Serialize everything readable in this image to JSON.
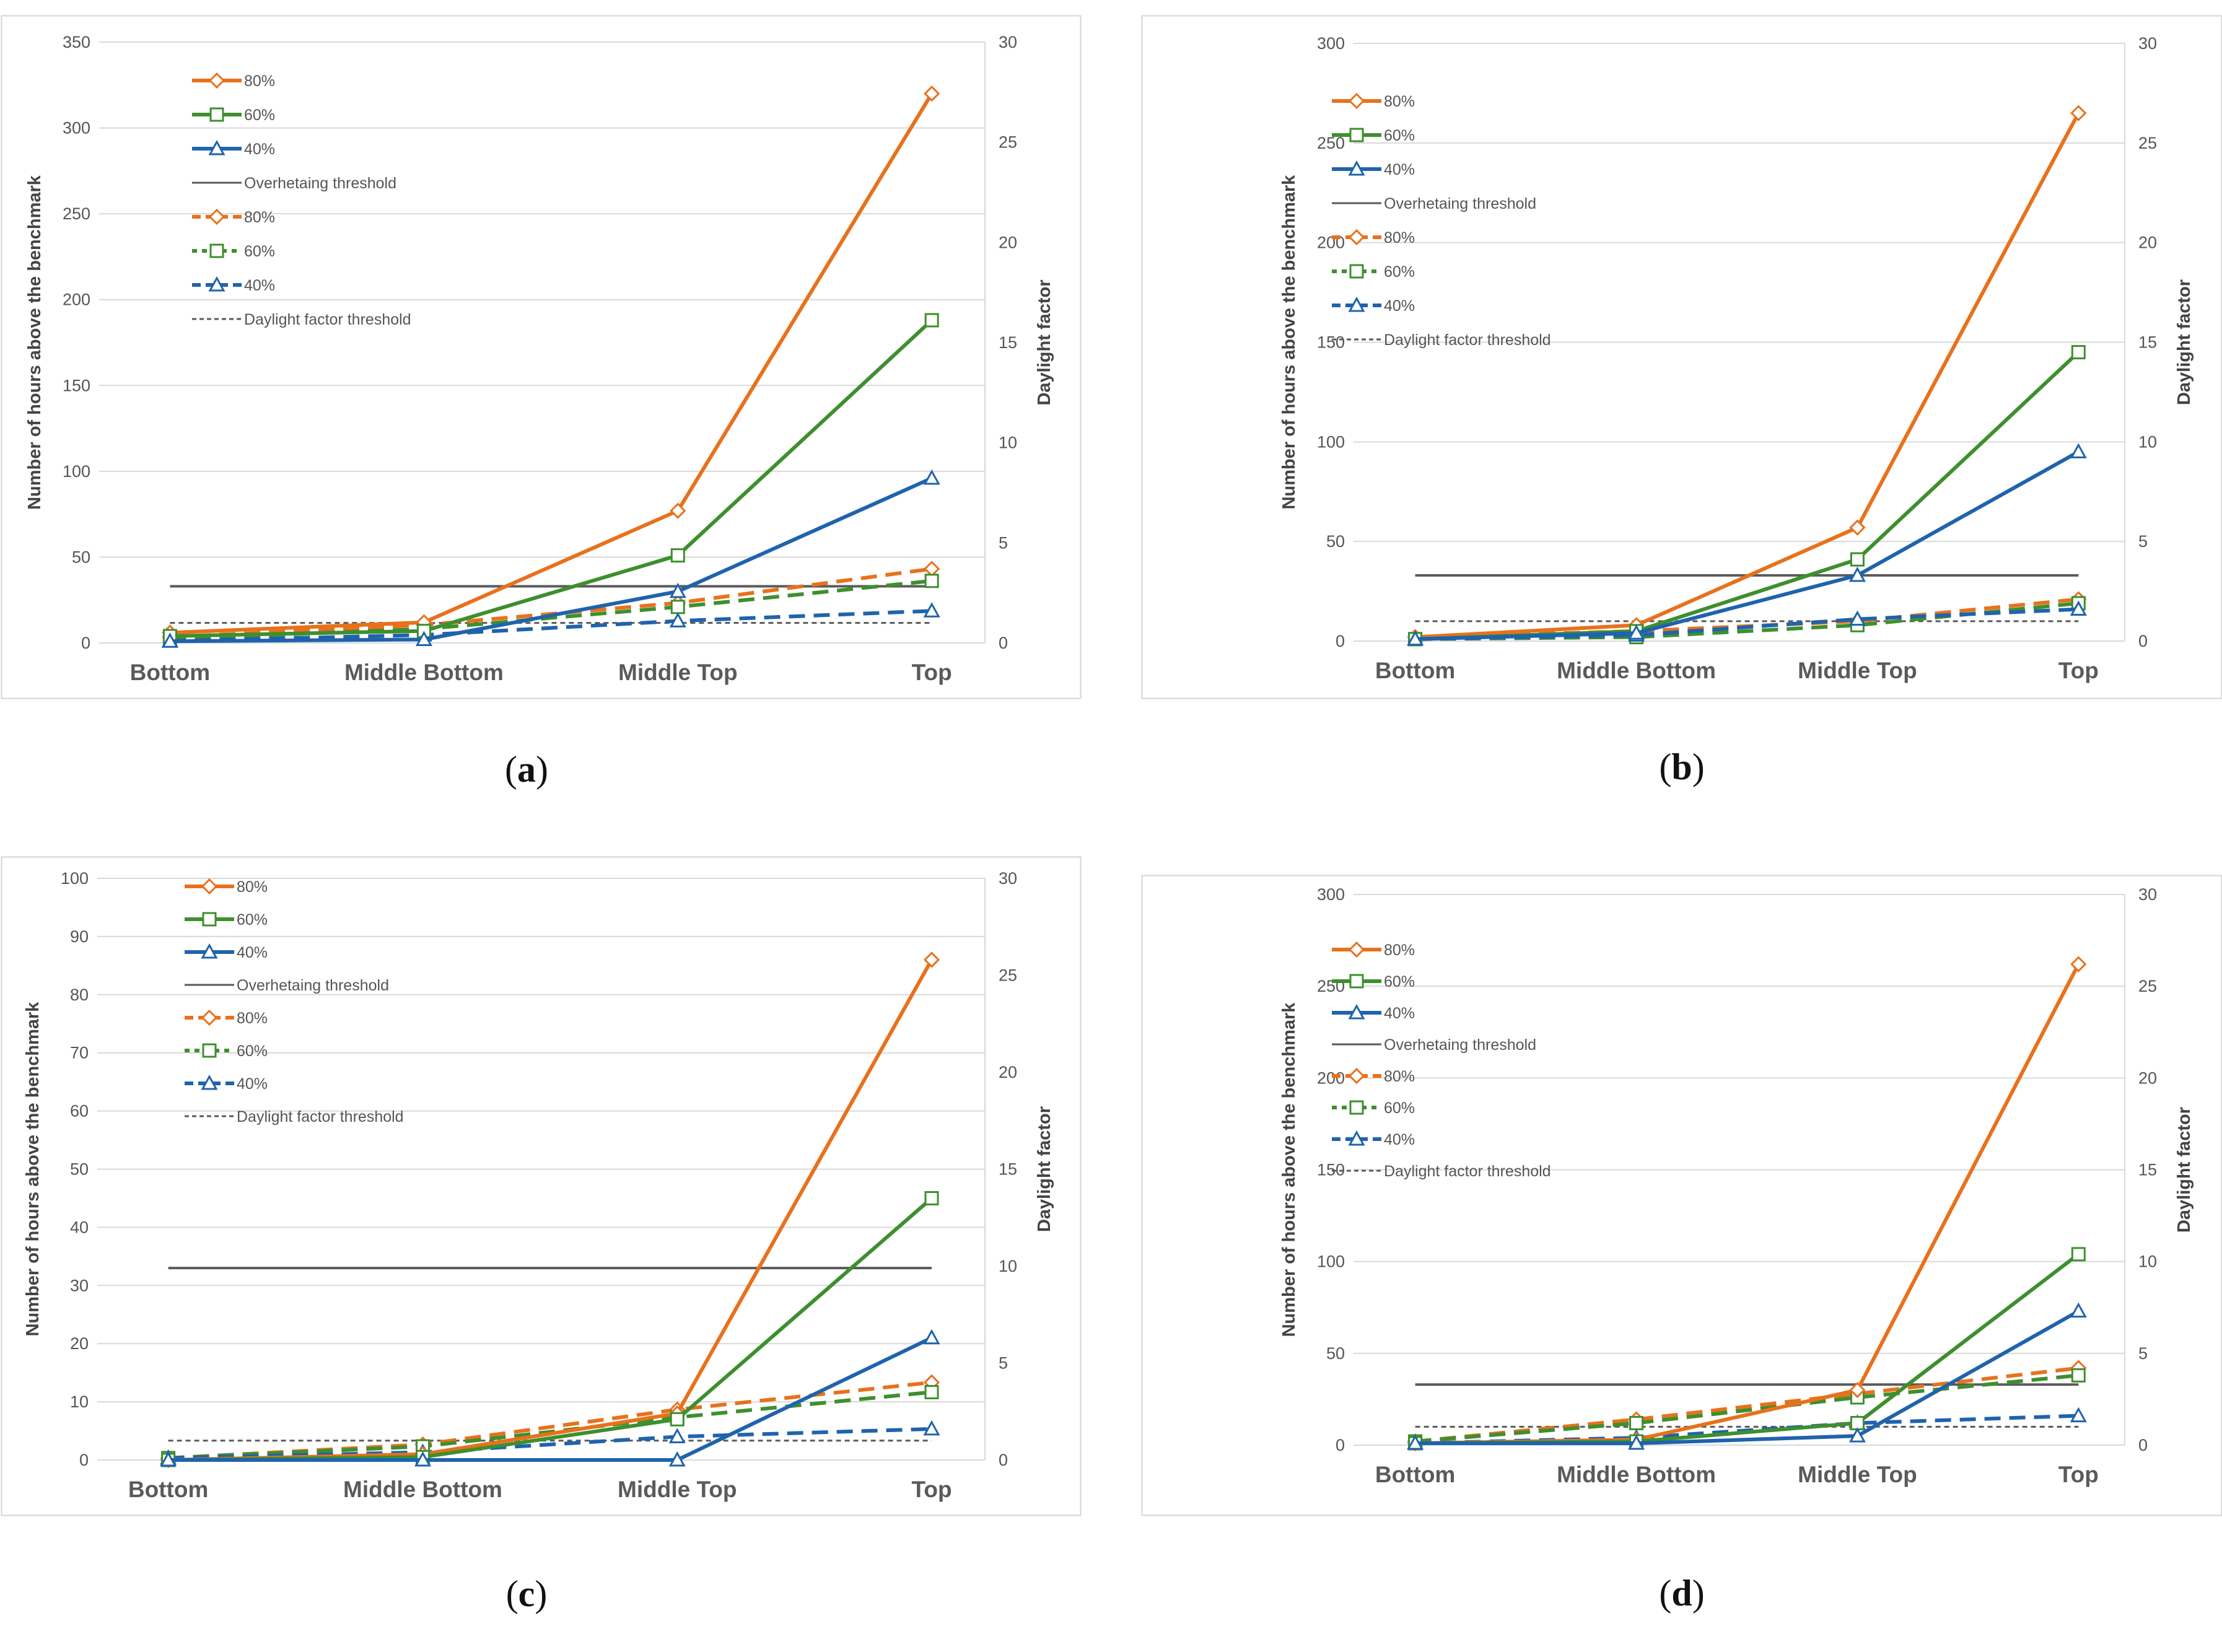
{
  "colors": {
    "orange": "#e8711c",
    "green": "#3e8f2e",
    "blue": "#1f63ad",
    "threshold": "#5a5a5a",
    "grid": "#d9d9d9",
    "frame": "#d4d4d4",
    "axis_text": "#555555"
  },
  "common": {
    "ylabel": "Number of hours above the benchmark",
    "y2label": "Daylight factor",
    "categories": [
      "Bottom",
      "Middle Bottom",
      "Middle Top",
      "Top"
    ],
    "legend": [
      "80%",
      "60%",
      "40%",
      "Overhetaing threshold",
      "80%",
      "60%",
      "40%",
      "Daylight factor threshold"
    ]
  },
  "chart_data": [
    {
      "panel": "(a)",
      "type": "line",
      "ylim": [
        0,
        350
      ],
      "ystep": 50,
      "y2lim": [
        0,
        30
      ],
      "y2step": 5,
      "overheating_threshold": 33,
      "daylight_threshold": 1,
      "series_hours": [
        {
          "name": "80%",
          "color": "orange",
          "marker": "diamond",
          "values": [
            6,
            12,
            77,
            320
          ]
        },
        {
          "name": "60%",
          "color": "green",
          "marker": "square",
          "values": [
            4,
            7,
            51,
            188
          ]
        },
        {
          "name": "40%",
          "color": "blue",
          "marker": "triangle",
          "values": [
            1,
            2,
            30,
            96
          ]
        }
      ],
      "series_daylight": [
        {
          "name": "80%",
          "color": "orange",
          "marker": "diamond",
          "values": [
            0.3,
            0.9,
            2.0,
            3.7
          ]
        },
        {
          "name": "60%",
          "color": "green",
          "marker": "square",
          "values": [
            0.2,
            0.7,
            1.8,
            3.1
          ]
        },
        {
          "name": "40%",
          "color": "blue",
          "marker": "triangle",
          "values": [
            0.1,
            0.4,
            1.1,
            1.6
          ]
        }
      ]
    },
    {
      "panel": "(b)",
      "type": "line",
      "ylim": [
        0,
        300
      ],
      "ystep": 50,
      "y2lim": [
        0,
        30
      ],
      "y2step": 5,
      "overheating_threshold": 33,
      "daylight_threshold": 1,
      "series_hours": [
        {
          "name": "80%",
          "color": "orange",
          "marker": "diamond",
          "values": [
            2,
            8,
            57,
            265
          ]
        },
        {
          "name": "60%",
          "color": "green",
          "marker": "square",
          "values": [
            1,
            5,
            41,
            145
          ]
        },
        {
          "name": "40%",
          "color": "blue",
          "marker": "triangle",
          "values": [
            1,
            4,
            33,
            95
          ]
        }
      ],
      "series_daylight": [
        {
          "name": "80%",
          "color": "orange",
          "marker": "diamond",
          "values": [
            0.2,
            0.5,
            1.0,
            2.1
          ]
        },
        {
          "name": "60%",
          "color": "green",
          "marker": "square",
          "values": [
            0.1,
            0.2,
            0.8,
            1.9
          ]
        },
        {
          "name": "40%",
          "color": "blue",
          "marker": "triangle",
          "values": [
            0.1,
            0.3,
            1.1,
            1.6
          ]
        }
      ]
    },
    {
      "panel": "(c)",
      "type": "line",
      "ylim": [
        0,
        100
      ],
      "ystep": 10,
      "y2lim": [
        0,
        30
      ],
      "y2step": 5,
      "overheating_threshold": 33,
      "daylight_threshold": 1,
      "series_hours": [
        {
          "name": "80%",
          "color": "orange",
          "marker": "diamond",
          "values": [
            0,
            1,
            8,
            86
          ]
        },
        {
          "name": "60%",
          "color": "green",
          "marker": "square",
          "values": [
            0,
            0.5,
            7,
            45
          ]
        },
        {
          "name": "40%",
          "color": "blue",
          "marker": "triangle",
          "values": [
            0,
            0,
            0,
            21
          ]
        }
      ],
      "series_daylight": [
        {
          "name": "80%",
          "color": "orange",
          "marker": "diamond",
          "values": [
            0.1,
            0.8,
            2.6,
            4.0
          ]
        },
        {
          "name": "60%",
          "color": "green",
          "marker": "square",
          "values": [
            0.1,
            0.7,
            2.2,
            3.5
          ]
        },
        {
          "name": "40%",
          "color": "blue",
          "marker": "triangle",
          "values": [
            0.1,
            0.4,
            1.2,
            1.6
          ]
        }
      ]
    },
    {
      "panel": "(d)",
      "type": "line",
      "ylim": [
        0,
        300
      ],
      "ystep": 50,
      "y2lim": [
        0,
        30
      ],
      "y2step": 5,
      "overheating_threshold": 33,
      "daylight_threshold": 1,
      "series_hours": [
        {
          "name": "80%",
          "color": "orange",
          "marker": "diamond",
          "values": [
            1,
            3,
            30,
            262
          ]
        },
        {
          "name": "60%",
          "color": "green",
          "marker": "square",
          "values": [
            1,
            2,
            12,
            104
          ]
        },
        {
          "name": "40%",
          "color": "blue",
          "marker": "triangle",
          "values": [
            1,
            1,
            5,
            73
          ]
        }
      ],
      "series_daylight": [
        {
          "name": "80%",
          "color": "orange",
          "marker": "diamond",
          "values": [
            0.2,
            1.4,
            2.8,
            4.2
          ]
        },
        {
          "name": "60%",
          "color": "green",
          "marker": "square",
          "values": [
            0.2,
            1.2,
            2.6,
            3.8
          ]
        },
        {
          "name": "40%",
          "color": "blue",
          "marker": "triangle",
          "values": [
            0.1,
            0.4,
            1.2,
            1.6
          ]
        }
      ]
    }
  ]
}
